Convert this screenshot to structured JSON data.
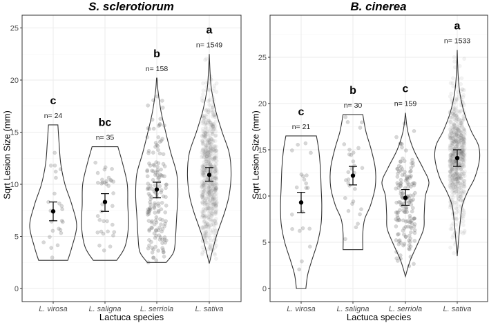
{
  "figure": {
    "x_axis_title": "Lactuca species",
    "y_axis_title": "Sqrt Lesion Size (mm)"
  },
  "chart_data": [
    {
      "type": "violin",
      "title": "S. sclerotiorum",
      "xlabel": "Lactuca species",
      "ylabel": "Sqrt Lesion Size (mm)",
      "ylim": [
        -1.2,
        26.5
      ],
      "yticks": [
        0,
        5,
        10,
        15,
        20,
        25
      ],
      "grid": true,
      "categories": [
        "L. virosa",
        "L. saligna",
        "L. serriola",
        "L. sativa"
      ],
      "groups": [
        {
          "species": "L. virosa",
          "letter": "c",
          "n_label": "n= 24",
          "n": 24,
          "mean": 7.4,
          "ci_low": 6.5,
          "ci_high": 8.3,
          "min": 2.7,
          "max": 15.7,
          "profile": [
            [
              2.7,
              0.62
            ],
            [
              4,
              0.8
            ],
            [
              6,
              1.0
            ],
            [
              8,
              0.8
            ],
            [
              10,
              0.5
            ],
            [
              12,
              0.32
            ],
            [
              14,
              0.25
            ],
            [
              15.7,
              0.2
            ]
          ]
        },
        {
          "species": "L. saligna",
          "letter": "bc",
          "n_label": "n= 35",
          "n": 35,
          "mean": 8.3,
          "ci_low": 7.4,
          "ci_high": 9.1,
          "min": 2.7,
          "max": 13.6,
          "profile": [
            [
              2.7,
              0.5
            ],
            [
              4,
              0.85
            ],
            [
              6,
              1.0
            ],
            [
              8,
              0.97
            ],
            [
              10,
              0.95
            ],
            [
              12,
              0.75
            ],
            [
              13.6,
              0.55
            ]
          ]
        },
        {
          "species": "L. serriola",
          "letter": "b",
          "n_label": "n= 158",
          "n": 158,
          "mean": 9.5,
          "ci_low": 8.7,
          "ci_high": 10.2,
          "min": 2.5,
          "max": 20.2,
          "profile": [
            [
              2.5,
              0.4
            ],
            [
              3.5,
              0.72
            ],
            [
              5,
              0.8
            ],
            [
              7,
              0.85
            ],
            [
              9,
              0.9
            ],
            [
              11,
              0.85
            ],
            [
              13,
              0.6
            ],
            [
              15,
              0.38
            ],
            [
              17,
              0.18
            ],
            [
              19,
              0.05
            ],
            [
              20.2,
              0.01
            ]
          ]
        },
        {
          "species": "L. sativa",
          "letter": "a",
          "n_label": "n= 1549",
          "n": 1549,
          "mean": 10.9,
          "ci_low": 10.3,
          "ci_high": 11.6,
          "min": 2.4,
          "max": 22.5,
          "profile": [
            [
              2.4,
              0.0
            ],
            [
              3.5,
              0.12
            ],
            [
              5,
              0.3
            ],
            [
              6,
              0.45
            ],
            [
              7.5,
              0.68
            ],
            [
              9,
              0.85
            ],
            [
              11,
              0.93
            ],
            [
              13,
              0.85
            ],
            [
              15,
              0.55
            ],
            [
              17,
              0.28
            ],
            [
              19,
              0.1
            ],
            [
              20.5,
              0.04
            ],
            [
              22.5,
              0.0
            ]
          ]
        }
      ]
    },
    {
      "type": "violin",
      "title": "B. cinerea",
      "xlabel": "Lactuca species",
      "ylabel": "Sqrt Lesion Size (mm)",
      "ylim": [
        -1.4,
        29
      ],
      "yticks": [
        0,
        5,
        10,
        15,
        20,
        25
      ],
      "grid": true,
      "categories": [
        "L. virosa",
        "L. saligna",
        "L. serriola",
        "L. sativa"
      ],
      "groups": [
        {
          "species": "L. virosa",
          "letter": "c",
          "n_label": "n= 21",
          "n": 21,
          "mean": 9.3,
          "ci_low": 8.2,
          "ci_high": 10.4,
          "min": 0.0,
          "max": 16.5,
          "profile": [
            [
              0,
              0.2
            ],
            [
              1.5,
              0.28
            ],
            [
              3,
              0.45
            ],
            [
              5,
              0.7
            ],
            [
              7,
              0.85
            ],
            [
              9,
              0.88
            ],
            [
              11,
              0.85
            ],
            [
              13,
              0.82
            ],
            [
              15,
              0.75
            ],
            [
              16.5,
              0.65
            ]
          ]
        },
        {
          "species": "L. saligna",
          "letter": "b",
          "n_label": "n= 30",
          "n": 30,
          "mean": 12.2,
          "ci_low": 11.2,
          "ci_high": 13.2,
          "min": 4.2,
          "max": 18.8,
          "profile": [
            [
              4.2,
              0.42
            ],
            [
              6,
              0.42
            ],
            [
              7.5,
              0.5
            ],
            [
              9,
              0.75
            ],
            [
              11,
              0.95
            ],
            [
              13,
              0.95
            ],
            [
              15,
              0.78
            ],
            [
              17,
              0.55
            ],
            [
              18.8,
              0.42
            ]
          ]
        },
        {
          "species": "L. serriola",
          "letter": "c",
          "n_label": "n= 159",
          "n": 159,
          "mean": 9.8,
          "ci_low": 9.0,
          "ci_high": 10.7,
          "min": 1.3,
          "max": 19.0,
          "profile": [
            [
              1.3,
              0.0
            ],
            [
              3,
              0.2
            ],
            [
              5,
              0.55
            ],
            [
              6.5,
              0.78
            ],
            [
              8,
              0.8
            ],
            [
              10,
              0.85
            ],
            [
              11.5,
              1.0
            ],
            [
              13,
              0.75
            ],
            [
              15,
              0.35
            ],
            [
              17,
              0.1
            ],
            [
              19,
              0.0
            ]
          ]
        },
        {
          "species": "L. sativa",
          "letter": "a",
          "n_label": "n= 1533",
          "n": 1533,
          "mean": 14.1,
          "ci_low": 13.2,
          "ci_high": 15.0,
          "min": 3.5,
          "max": 25.8,
          "profile": [
            [
              3.5,
              0.0
            ],
            [
              5,
              0.05
            ],
            [
              7,
              0.12
            ],
            [
              9,
              0.22
            ],
            [
              10.5,
              0.45
            ],
            [
              12,
              0.75
            ],
            [
              14,
              0.95
            ],
            [
              15.5,
              0.9
            ],
            [
              17,
              0.6
            ],
            [
              19,
              0.3
            ],
            [
              21,
              0.12
            ],
            [
              23,
              0.04
            ],
            [
              25.8,
              0.0
            ]
          ]
        }
      ]
    }
  ]
}
